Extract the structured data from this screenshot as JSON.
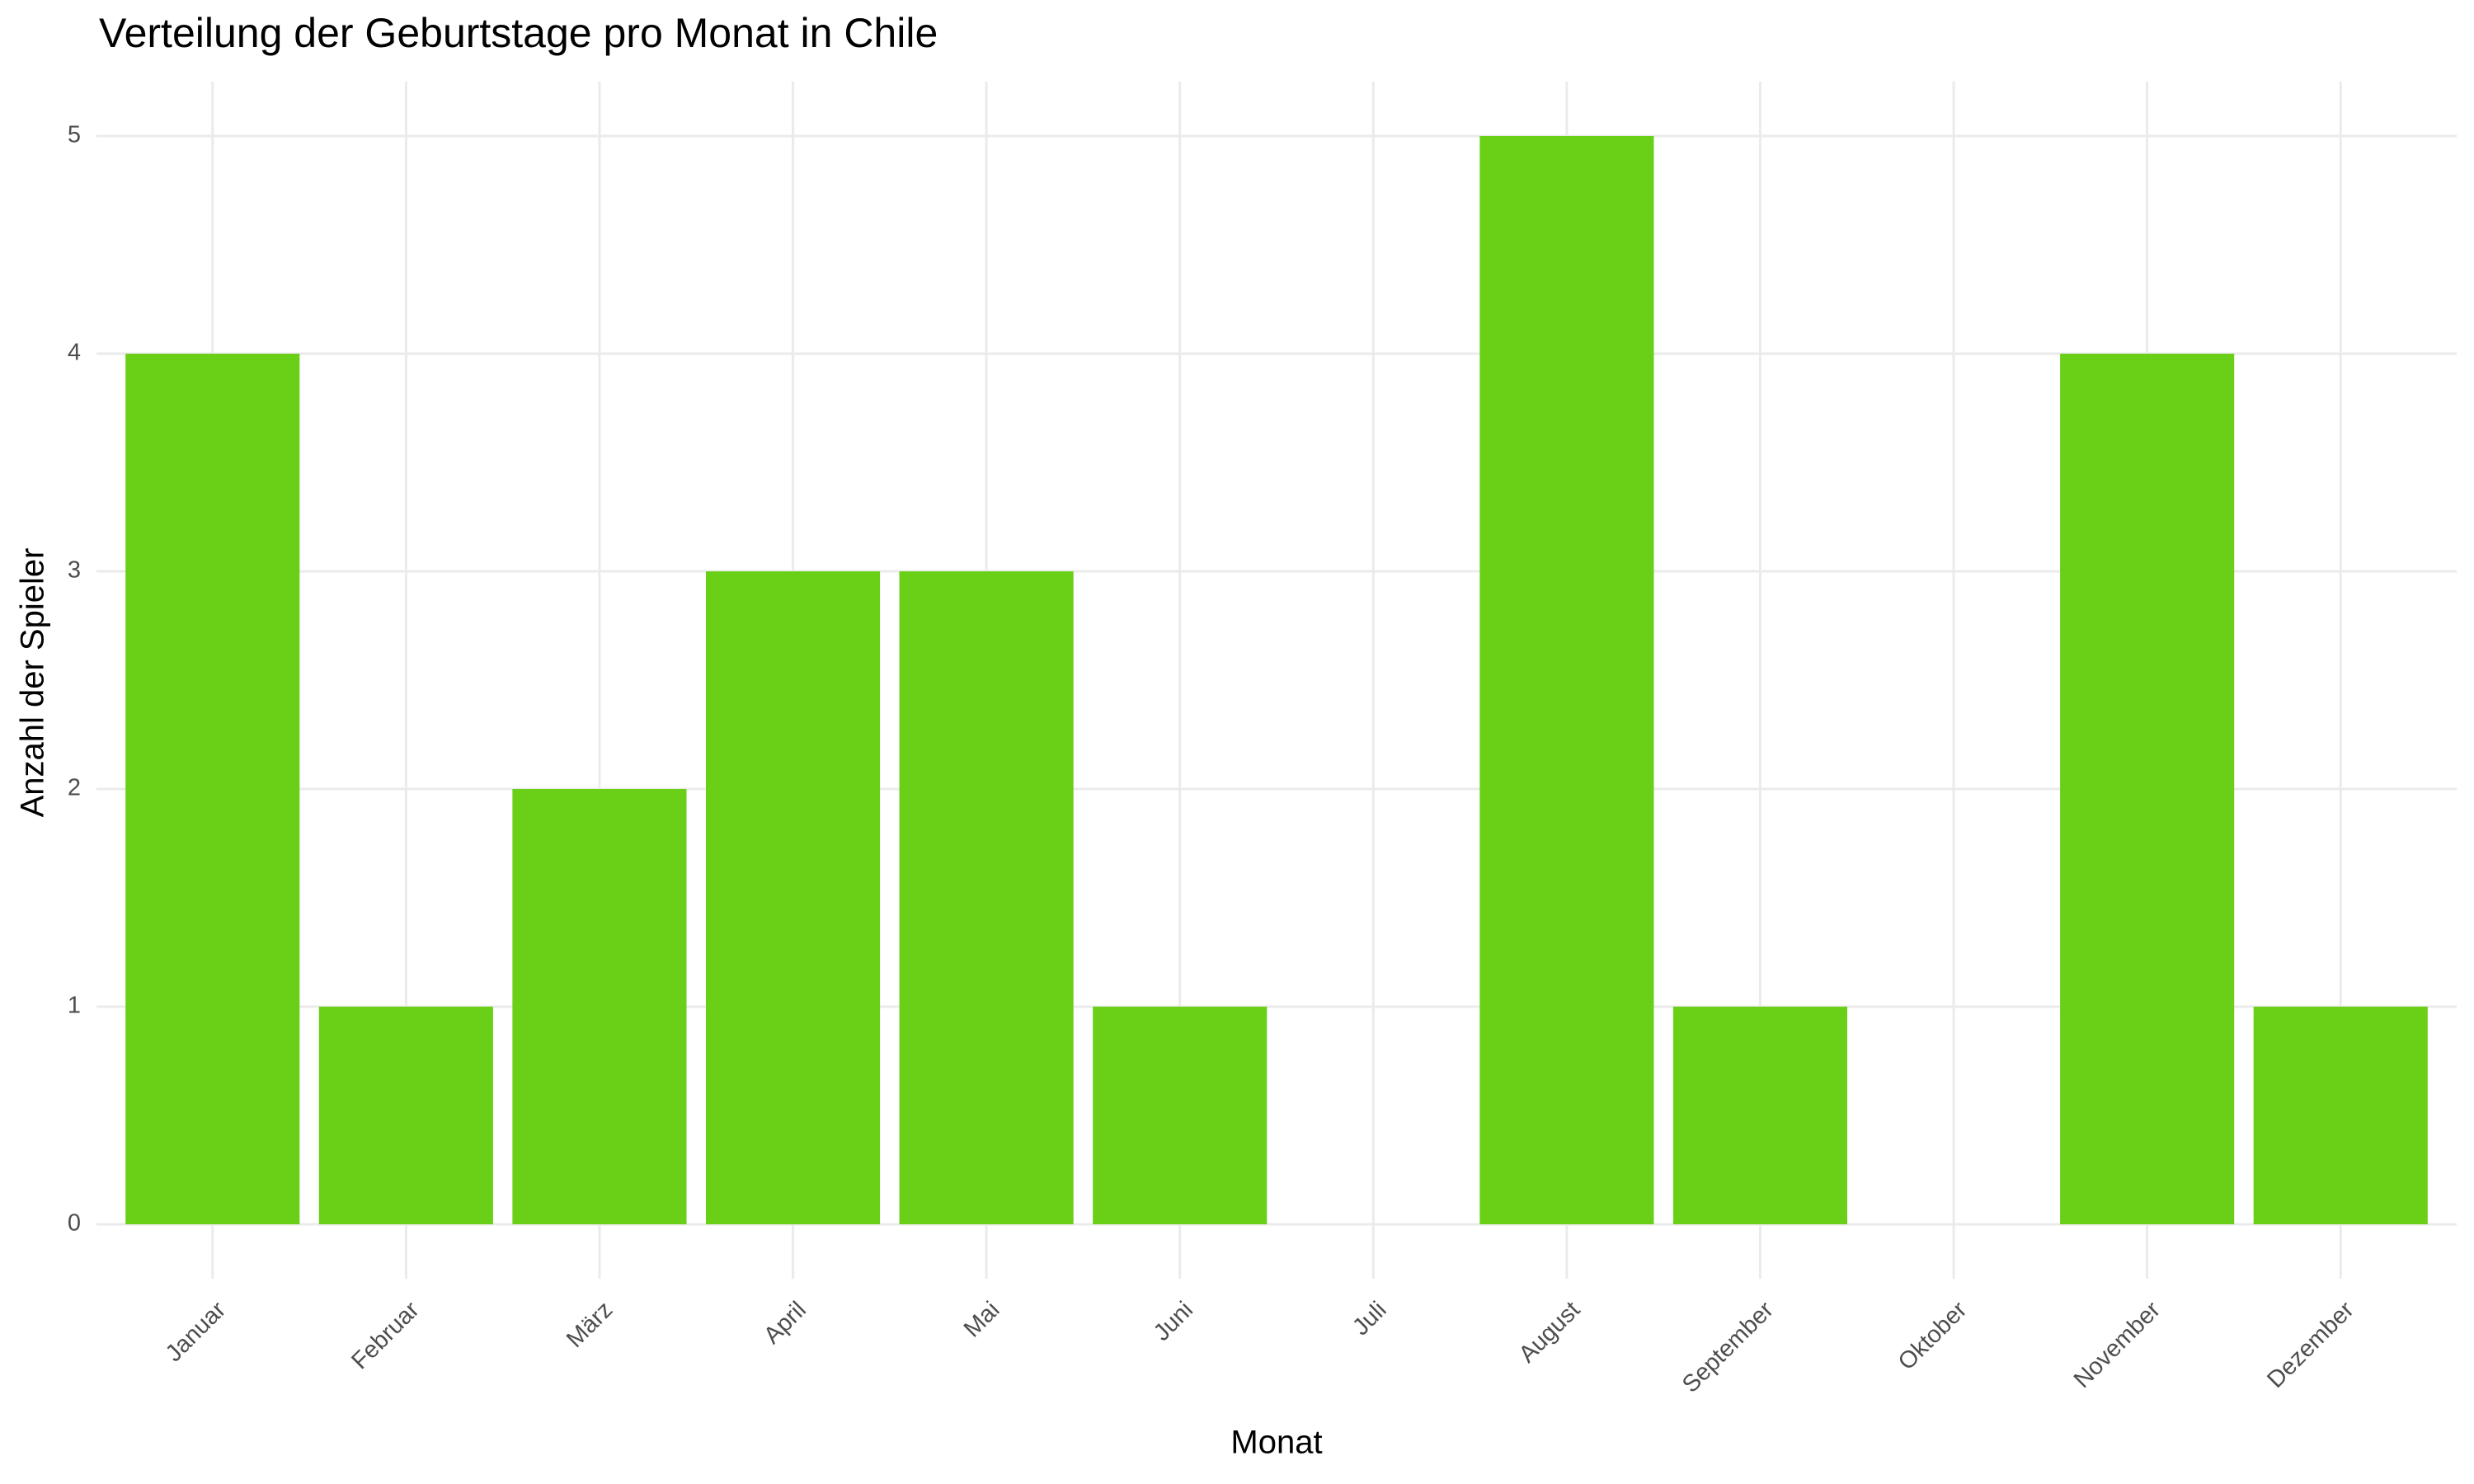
{
  "chart_data": {
    "type": "bar",
    "title": "Verteilung der Geburtstage pro Monat in Chile",
    "x_label": "Monat",
    "y_label": "Anzahl der Spieler",
    "categories": [
      "Januar",
      "Februar",
      "März",
      "April",
      "Mai",
      "Juni",
      "Juli",
      "August",
      "September",
      "Oktober",
      "November",
      "Dezember"
    ],
    "values": [
      4,
      1,
      2,
      3,
      3,
      1,
      0,
      5,
      1,
      0,
      4,
      1
    ],
    "color": "#6acf17",
    "ylim": [
      -0.25,
      5.25
    ],
    "yticks": [
      0,
      1,
      2,
      3,
      4,
      5
    ],
    "grid": true
  }
}
